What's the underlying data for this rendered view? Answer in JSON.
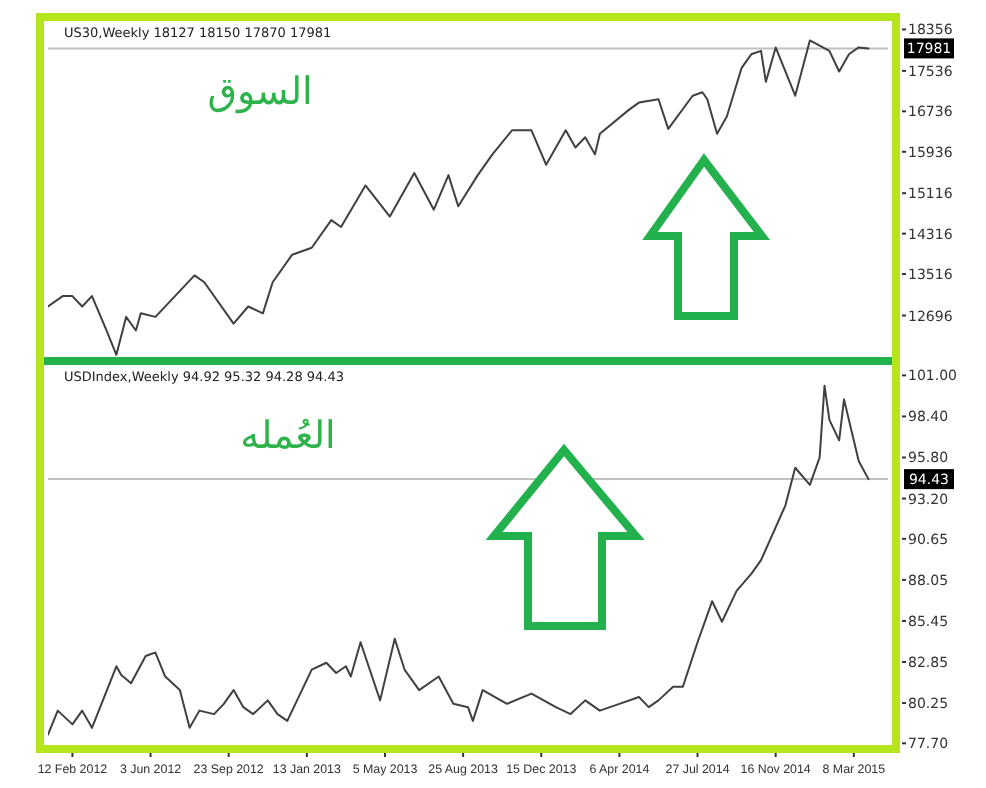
{
  "chart_data": [
    {
      "type": "line",
      "annotations": [
        "US30,Weekly  18127 18150 17870 17981",
        "السوق"
      ],
      "xlim": [
        "2012-01-08",
        "2015-04-26"
      ],
      "ylim": [
        11796,
        18602
      ],
      "tick_labels": "y",
      "yticks": [
        12696,
        13516,
        14316,
        15116,
        15936,
        16736,
        17536,
        18356
      ],
      "ref_lines": [
        {
          "axis": "y",
          "value": 17981,
          "label": "17981",
          "color": "#c0c0c0"
        }
      ],
      "series": [
        {
          "color": "#404040",
          "x": [
            "2012-01-08",
            "2012-01-29",
            "2012-02-12",
            "2012-02-26",
            "2012-03-11",
            "2012-04-01",
            "2012-04-15",
            "2012-04-29",
            "2012-05-13",
            "2012-05-20",
            "2012-06-10",
            "2012-07-08",
            "2012-08-05",
            "2012-08-19",
            "2012-09-30",
            "2012-10-21",
            "2012-11-11",
            "2012-11-25",
            "2012-12-23",
            "2013-01-20",
            "2013-02-17",
            "2013-03-03",
            "2013-04-07",
            "2013-05-12",
            "2013-06-16",
            "2013-07-14",
            "2013-08-04",
            "2013-08-18",
            "2013-09-15",
            "2013-10-06",
            "2013-11-03",
            "2013-12-01",
            "2013-12-22",
            "2014-01-19",
            "2014-02-02",
            "2014-02-16",
            "2014-03-02",
            "2014-03-09",
            "2014-04-20",
            "2014-05-04",
            "2014-06-01",
            "2014-06-15",
            "2014-07-20",
            "2014-08-03",
            "2014-08-10",
            "2014-08-24",
            "2014-09-07",
            "2014-09-28",
            "2014-10-12",
            "2014-10-26",
            "2014-11-02",
            "2014-11-16",
            "2014-12-14",
            "2015-01-04",
            "2015-02-01",
            "2015-02-15",
            "2015-03-01",
            "2015-03-15",
            "2015-03-29"
          ],
          "values": [
            12874,
            13080,
            13080,
            12874,
            13080,
            12399,
            11919,
            12669,
            12399,
            12739,
            12669,
            13080,
            13489,
            13354,
            12534,
            12874,
            12739,
            13354,
            13899,
            14036,
            14584,
            14448,
            15269,
            14654,
            15515,
            14789,
            15474,
            14859,
            15474,
            15884,
            16359,
            16359,
            15679,
            16359,
            16019,
            16224,
            15884,
            16294,
            16769,
            16909,
            16974,
            16388,
            17044,
            17114,
            16974,
            16294,
            16634,
            17589,
            17864,
            17933,
            17319,
            18000,
            17044,
            18139,
            17933,
            17524,
            17864,
            18000,
            17981
          ]
        }
      ]
    },
    {
      "type": "line",
      "annotations": [
        "USDIndex,Weekly  94.92 95.32 94.28 94.43",
        "العُمله"
      ],
      "xlim": [
        "2012-01-08",
        "2015-04-26"
      ],
      "ylim": [
        77.34,
        101.91
      ],
      "xticks": [
        {
          "value": "2012-02-12",
          "label": "12 Feb 2012"
        },
        {
          "value": "2012-06-03",
          "label": "3 Jun 2012"
        },
        {
          "value": "2012-09-23",
          "label": "23 Sep 2012"
        },
        {
          "value": "2013-01-13",
          "label": "13 Jan 2013"
        },
        {
          "value": "2013-05-05",
          "label": "5 May 2013"
        },
        {
          "value": "2013-08-25",
          "label": "25 Aug 2013"
        },
        {
          "value": "2013-12-15",
          "label": "15 Dec 2013"
        },
        {
          "value": "2014-04-06",
          "label": "6 Apr 2014"
        },
        {
          "value": "2014-07-27",
          "label": "27 Jul 2014"
        },
        {
          "value": "2014-11-16",
          "label": "16 Nov 2014"
        },
        {
          "value": "2015-03-08",
          "label": "8 Mar 2015"
        }
      ],
      "yticks": [
        {
          "value": 77.7,
          "label": "77.70"
        },
        {
          "value": 80.25,
          "label": "80.25"
        },
        {
          "value": 82.85,
          "label": "82.85"
        },
        {
          "value": 85.45,
          "label": "85.45"
        },
        {
          "value": 88.05,
          "label": "88.05"
        },
        {
          "value": 90.65,
          "label": "90.65"
        },
        {
          "value": 93.2,
          "label": "93.20"
        },
        {
          "value": 95.8,
          "label": "95.80"
        },
        {
          "value": 98.4,
          "label": "98.40"
        },
        {
          "value": 101,
          "label": "101.00"
        }
      ],
      "ref_lines": [
        {
          "axis": "y",
          "value": 94.43,
          "label": "94.43",
          "color": "#c0c0c0"
        }
      ],
      "series": [
        {
          "color": "#404040",
          "x": [
            "2012-01-08",
            "2012-01-22",
            "2012-02-12",
            "2012-02-26",
            "2012-03-11",
            "2012-04-15",
            "2012-04-22",
            "2012-05-06",
            "2012-05-27",
            "2012-06-10",
            "2012-06-24",
            "2012-07-15",
            "2012-07-29",
            "2012-08-12",
            "2012-09-02",
            "2012-09-16",
            "2012-09-30",
            "2012-10-14",
            "2012-10-28",
            "2012-11-18",
            "2012-12-02",
            "2012-12-16",
            "2013-01-20",
            "2013-02-10",
            "2013-02-24",
            "2013-03-10",
            "2013-03-17",
            "2013-03-31",
            "2013-04-28",
            "2013-05-19",
            "2013-06-02",
            "2013-06-23",
            "2013-07-21",
            "2013-08-11",
            "2013-09-01",
            "2013-09-08",
            "2013-09-22",
            "2013-10-27",
            "2013-12-01",
            "2014-01-05",
            "2014-01-26",
            "2014-02-16",
            "2014-03-09",
            "2014-04-06",
            "2014-05-04",
            "2014-05-18",
            "2014-06-01",
            "2014-06-22",
            "2014-07-06",
            "2014-07-27",
            "2014-08-17",
            "2014-08-31",
            "2014-09-21",
            "2014-10-12",
            "2014-10-26",
            "2014-11-30",
            "2014-12-14",
            "2015-01-04",
            "2015-01-18",
            "2015-01-25",
            "2015-02-01",
            "2015-02-15",
            "2015-02-22",
            "2015-03-08",
            "2015-03-15",
            "2015-03-29"
          ],
          "values": [
            78.25,
            79.77,
            78.9,
            79.77,
            78.68,
            82.58,
            82.02,
            81.5,
            83.23,
            83.45,
            81.93,
            81.07,
            78.68,
            79.77,
            79.55,
            80.2,
            81.07,
            79.99,
            79.55,
            80.42,
            79.55,
            79.12,
            82.37,
            82.8,
            82.15,
            82.58,
            81.93,
            84.1,
            80.42,
            84.32,
            82.37,
            81.07,
            81.93,
            80.2,
            79.99,
            79.12,
            81.07,
            80.2,
            80.85,
            79.99,
            79.55,
            80.42,
            79.77,
            80.2,
            80.63,
            79.99,
            80.42,
            81.28,
            81.28,
            84.1,
            86.7,
            85.4,
            87.35,
            88.43,
            89.3,
            92.77,
            95.15,
            94.07,
            95.8,
            100.35,
            98.18,
            96.88,
            99.48,
            96.88,
            95.58,
            94.43
          ]
        }
      ]
    }
  ]
}
